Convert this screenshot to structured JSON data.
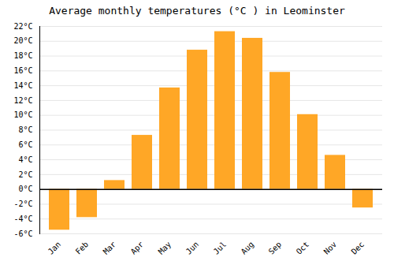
{
  "chart_data": {
    "type": "bar",
    "title": "Average monthly temperatures (°C ) in Leominster",
    "categories": [
      "Jan",
      "Feb",
      "Mar",
      "Apr",
      "May",
      "Jun",
      "Jul",
      "Aug",
      "Sep",
      "Oct",
      "Nov",
      "Dec"
    ],
    "values": [
      -5.5,
      -3.8,
      1.2,
      7.3,
      13.7,
      18.8,
      21.3,
      20.4,
      15.8,
      10.1,
      4.6,
      -2.5
    ],
    "color": "#FFA726",
    "ylim": [
      -6,
      22
    ],
    "yticks": [
      {
        "value": -6,
        "label": "-6°C"
      },
      {
        "value": -4,
        "label": "-4°C"
      },
      {
        "value": -2,
        "label": "-2°C"
      },
      {
        "value": 0,
        "label": "0°C"
      },
      {
        "value": 2,
        "label": "2°C"
      },
      {
        "value": 4,
        "label": "4°C"
      },
      {
        "value": 6,
        "label": "6°C"
      },
      {
        "value": 8,
        "label": "8°C"
      },
      {
        "value": 10,
        "label": "10°C"
      },
      {
        "value": 12,
        "label": "12°C"
      },
      {
        "value": 14,
        "label": "14°C"
      },
      {
        "value": 16,
        "label": "16°C"
      },
      {
        "value": 18,
        "label": "18°C"
      },
      {
        "value": 20,
        "label": "20°C"
      },
      {
        "value": 22,
        "label": "22°C"
      }
    ],
    "grid": true
  }
}
